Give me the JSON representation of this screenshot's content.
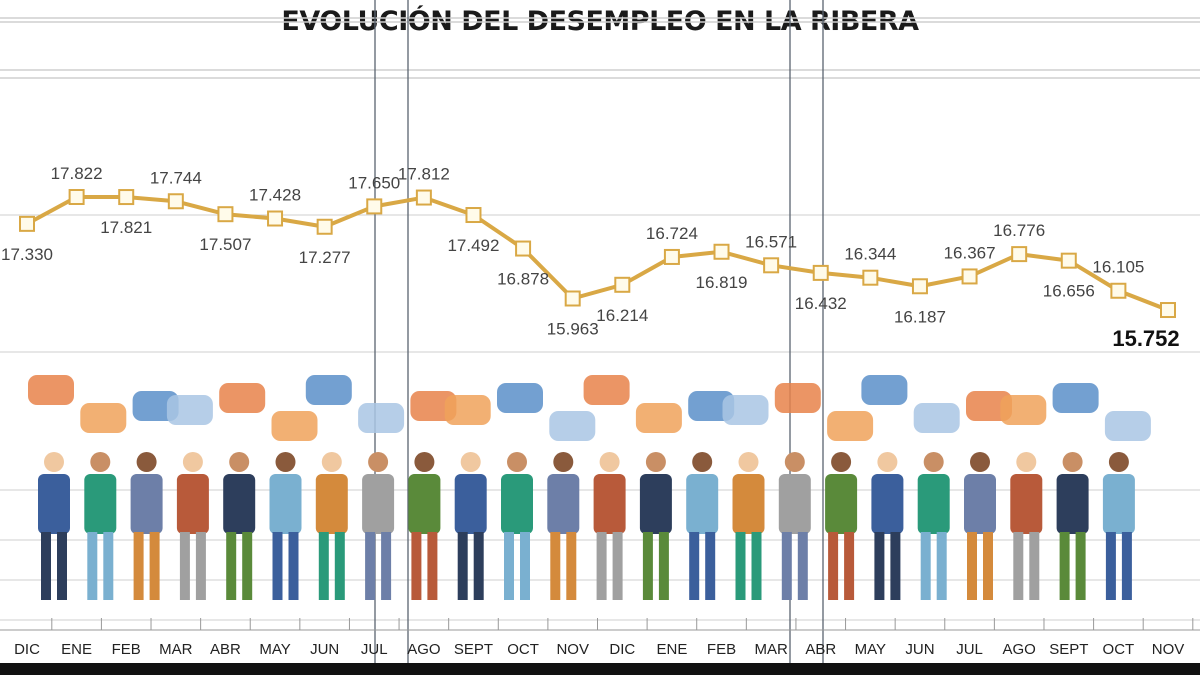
{
  "chart_data": {
    "type": "line",
    "title": "EVOLUCIÓN DEL DESEMPLEO EN LA RIBERA",
    "xlabel": "",
    "ylabel": "",
    "categories": [
      "DIC",
      "ENE",
      "FEB",
      "MAR",
      "ABR",
      "MAY",
      "JUN",
      "JUL",
      "AGO",
      "SEPT",
      "OCT",
      "NOV",
      "DIC",
      "ENE",
      "FEB",
      "MAR",
      "ABR",
      "MAY",
      "JUN",
      "JUL",
      "AGO",
      "SEPT",
      "OCT",
      "NOV"
    ],
    "values": [
      17330,
      17822,
      17821,
      17744,
      17507,
      17428,
      17277,
      17650,
      17812,
      17492,
      16878,
      15963,
      16214,
      16724,
      16819,
      16571,
      16432,
      16344,
      16187,
      16367,
      16776,
      16656,
      16105,
      15752
    ],
    "labels": [
      "17.330",
      "17.822",
      "17.821",
      "17.744",
      "17.507",
      "17.428",
      "17.277",
      "17.650",
      "17.812",
      "17.492",
      "16.878",
      "15.963",
      "16.214",
      "16.724",
      "16.819",
      "16.571",
      "16.432",
      "16.344",
      "16.187",
      "16.367",
      "16.776",
      "16.656",
      "16.105",
      "15.752"
    ],
    "grid": true,
    "line_color": "#d9a845",
    "highlight_last": true
  },
  "colors": {
    "line": "#d9a845",
    "grid": "#c8c8c8",
    "bubbles": [
      "#e8834a",
      "#f0a25a",
      "#5b8fc9",
      "#a9c6e4"
    ]
  }
}
